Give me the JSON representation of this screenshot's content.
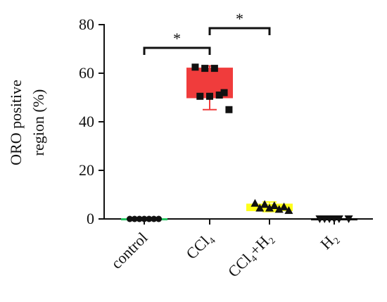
{
  "chart_data": {
    "type": "box",
    "y_label": [
      "ORO positive",
      "region (%)"
    ],
    "categories": [
      "control",
      "CCl₄",
      "CCl₄+H₂",
      "H₂"
    ],
    "ylim": [
      0,
      80
    ],
    "yticks": [
      0,
      20,
      40,
      60,
      80
    ],
    "annotations": [
      "*",
      "*"
    ],
    "groups": [
      {
        "color": "#22c55e",
        "marker": "circle",
        "points": [
          0,
          0,
          0,
          0,
          0,
          0,
          0
        ],
        "box": {
          "min": 0,
          "q1": 0,
          "median": 0,
          "q3": 0,
          "max": 0
        }
      },
      {
        "color": "#f03c3c",
        "marker": "square",
        "points": [
          62.5,
          62,
          62,
          52,
          50.5,
          50.5,
          51,
          45
        ],
        "box": {
          "min": 45,
          "q1": 50,
          "median": 52,
          "q3": 62,
          "max": 63
        }
      },
      {
        "color": "#ffff1a",
        "marker": "triangle",
        "points": [
          6.5,
          6,
          5.5,
          5,
          4.5,
          4.5,
          4,
          3.5
        ],
        "box": {
          "min": 3,
          "q1": 3.5,
          "median": 4.5,
          "q3": 6,
          "max": 7
        }
      },
      {
        "color": "#000000",
        "marker": "triangle-down",
        "points": [
          0,
          0,
          0,
          0,
          0,
          0
        ],
        "box": {
          "min": 0,
          "q1": 0,
          "median": 0,
          "q3": 0,
          "max": 0
        }
      }
    ]
  }
}
